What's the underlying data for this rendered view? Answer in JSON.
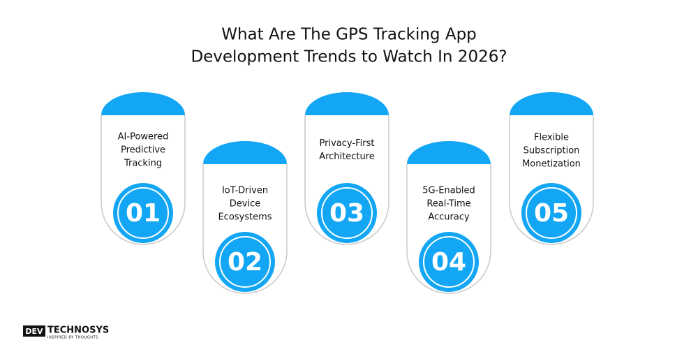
{
  "title": [
    "What Are The GPS Tracking App",
    "Development Trends to Watch In 2026?"
  ],
  "cards": [
    {
      "number": "01",
      "label": [
        "AI-Powered",
        "Predictive",
        "Tracking"
      ]
    },
    {
      "number": "02",
      "label": [
        "IoT-Driven",
        "Device",
        "Ecosystems"
      ]
    },
    {
      "number": "03",
      "label": [
        "Privacy-First",
        "Architecture"
      ]
    },
    {
      "number": "04",
      "label": [
        "5G-Enabled",
        "Real-Time",
        "Accuracy"
      ]
    },
    {
      "number": "05",
      "label": [
        "Flexible",
        "Subscription",
        "Monetization"
      ]
    }
  ],
  "logo": {
    "mark": "DEV",
    "name": "TECHNOSYS",
    "tagline": "INSPIRED BY THOUGHTS"
  }
}
